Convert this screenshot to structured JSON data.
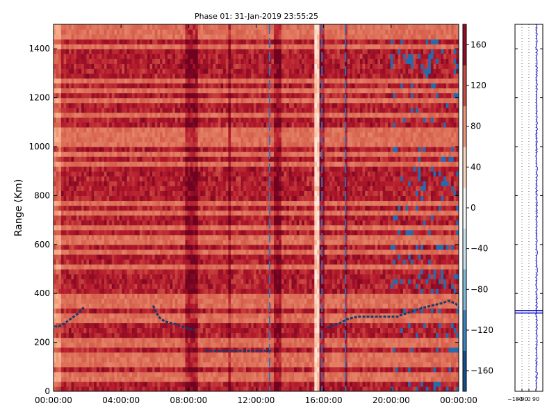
{
  "chart_data": [
    {
      "type": "heatmap",
      "title": "Phase 01: 31-Jan-2019 23:55:25",
      "ylabel": "Range (Km)",
      "xlabel": "",
      "x_ticks": [
        "00:00:00",
        "04:00:00",
        "08:00:00",
        "12:00:00",
        "16:00:00",
        "20:00:00",
        "00:00:00"
      ],
      "x_range_hours": [
        0,
        24
      ],
      "y_ticks": [
        0,
        200,
        400,
        600,
        800,
        1000,
        1200,
        1400
      ],
      "ylim": [
        0,
        1500
      ],
      "colorbar": {
        "range": [
          -180,
          180
        ],
        "ticks": [
          160,
          120,
          80,
          40,
          0,
          -40,
          -80,
          -120,
          -160
        ],
        "tick_labels": [
          "160",
          "120",
          "80",
          "40",
          "0",
          "−40",
          "−80",
          "−120",
          "−160"
        ],
        "colors": [
          "#053061",
          "#2166ac",
          "#4393c3",
          "#92c5de",
          "#d1e5f0",
          "#f7f7f7",
          "#fddbc7",
          "#f4a582",
          "#d6604d",
          "#b2182b",
          "#67001f"
        ]
      },
      "background_value": 100,
      "strong_range_bands_km": [
        20,
        95,
        165,
        235,
        260,
        330,
        420,
        455,
        480,
        540,
        590,
        645,
        700,
        745,
        800,
        830,
        860,
        900,
        950,
        985,
        1100,
        1160,
        1210,
        1250,
        1300,
        1340,
        1365,
        1390,
        1430
      ],
      "dark_time_bands_hours": [
        [
          7.8,
          8.6
        ],
        [
          10.35,
          10.45
        ],
        [
          12.7,
          12.8
        ],
        [
          13.1,
          13.5
        ],
        [
          15.8,
          16.0
        ],
        [
          17.3,
          17.4
        ]
      ],
      "light_time_bands_hours": [
        [
          15.4,
          15.7
        ]
      ],
      "blue_time_lines_hours": [
        12.8,
        15.9,
        17.3
      ],
      "traces": [
        {
          "x": [
            0.05,
            0.3,
            0.6,
            0.9,
            1.2,
            1.5,
            1.75,
            1.85
          ],
          "y": [
            265,
            265,
            275,
            290,
            305,
            320,
            340,
            345
          ]
        },
        {
          "x": [
            5.9,
            6.1,
            6.3,
            6.6,
            6.9,
            7.2,
            7.6,
            8.0,
            8.4
          ],
          "y": [
            350,
            320,
            300,
            285,
            280,
            275,
            265,
            255,
            250
          ]
        },
        {
          "x": [
            9.0,
            10.0,
            11.0,
            12.0,
            12.9
          ],
          "y": [
            165,
            165,
            165,
            165,
            165
          ]
        },
        {
          "x": [
            16.2,
            16.6,
            17.0,
            17.4,
            18.0,
            19.0,
            20.0,
            20.5
          ],
          "y": [
            260,
            270,
            280,
            295,
            305,
            305,
            305,
            305
          ]
        },
        {
          "x": [
            20.5,
            21.2,
            21.8,
            22.4,
            23.0,
            23.4,
            23.8,
            24.0
          ],
          "y": [
            310,
            325,
            340,
            350,
            360,
            370,
            360,
            345
          ]
        }
      ]
    },
    {
      "type": "line",
      "xlim": [
        -180,
        180
      ],
      "x_ticks": [
        -180,
        -90,
        0,
        90
      ],
      "x_tick_labels": [
        "−180",
        "−90",
        "0",
        "90"
      ],
      "ylim": [
        0,
        1500
      ],
      "profile_center": 100,
      "spike_range_km": [
        320,
        330
      ],
      "color": "#0000cc"
    }
  ]
}
